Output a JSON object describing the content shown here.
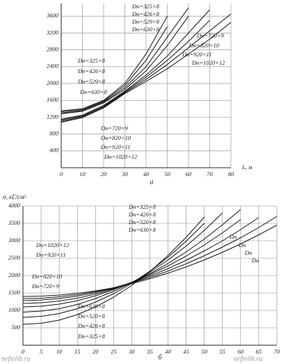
{
  "chart_data": [
    {
      "type": "line",
      "title": "а",
      "x_label": "L, м",
      "x": [
        0,
        10,
        20,
        30,
        40,
        50,
        60,
        70,
        80
      ],
      "xlim": [
        0,
        80
      ],
      "xticks": [
        0,
        10,
        20,
        30,
        40,
        50,
        60,
        70,
        80
      ],
      "ylim": [
        0,
        3900
      ],
      "yticks": [
        400,
        800,
        1200,
        1600,
        2000,
        2400,
        2800,
        3200,
        3600
      ],
      "grid": true,
      "series": [
        {
          "name": "Dн=325×8",
          "color": "#111111",
          "values": [
            1350,
            1400,
            1600,
            2000,
            2700,
            3600,
            null,
            null,
            null
          ]
        },
        {
          "name": "Dн=426×8",
          "color": "#111111",
          "values": [
            1330,
            1380,
            1580,
            1950,
            2550,
            3350,
            null,
            null,
            null
          ]
        },
        {
          "name": "Dн=529×8",
          "color": "#111111",
          "values": [
            1300,
            1360,
            1560,
            1900,
            2400,
            3100,
            3800,
            null,
            null
          ]
        },
        {
          "name": "Dн=630×8",
          "color": "#111111",
          "values": [
            1280,
            1340,
            1540,
            1860,
            2300,
            2900,
            3600,
            null,
            null
          ]
        },
        {
          "name": "Dн=720×9",
          "color": "#111111",
          "values": [
            1150,
            1250,
            1480,
            1820,
            2200,
            2650,
            3200,
            3750,
            null
          ]
        },
        {
          "name": "Dн=820×10",
          "color": "#111111",
          "values": [
            1130,
            1230,
            1460,
            1800,
            2150,
            2550,
            3000,
            3500,
            null
          ]
        },
        {
          "name": "Dн=920×11",
          "color": "#111111",
          "values": [
            1100,
            1210,
            1440,
            1780,
            2100,
            2450,
            2850,
            3250,
            3650
          ]
        },
        {
          "name": "Dн=1020×12",
          "color": "#111111",
          "values": [
            1080,
            1190,
            1420,
            1760,
            2050,
            2350,
            2700,
            3050,
            3450
          ]
        }
      ],
      "annotations": [
        "Dн=325×8",
        "Dн=426×8",
        "Dн=529×8",
        "Dн=630×8",
        "Dн=720×9",
        "Dн=820×10",
        "Dн=920×11",
        "Dн=1020×12"
      ]
    },
    {
      "type": "line",
      "title": "б",
      "y_label": "σ, кГ/см²",
      "x": [
        0,
        5,
        10,
        15,
        20,
        25,
        30,
        35,
        40,
        45,
        50,
        55,
        60,
        65,
        70
      ],
      "xlim": [
        0,
        70
      ],
      "xticks": [
        0,
        5,
        10,
        15,
        20,
        25,
        30,
        35,
        40,
        45,
        50,
        55,
        60,
        65,
        70
      ],
      "ylim": [
        0,
        4000
      ],
      "yticks": [
        500,
        1000,
        1500,
        2000,
        2500,
        3000,
        3500,
        4000
      ],
      "grid": true,
      "series": [
        {
          "name": "Dн=1020×12",
          "color": "#111111",
          "values": [
            1400,
            1410,
            1440,
            1490,
            1560,
            1650,
            1770,
            1910,
            2070,
            2250,
            2450,
            2670,
            2910,
            3170,
            3450
          ]
        },
        {
          "name": "Dн=920×11",
          "color": "#111111",
          "values": [
            1340,
            1350,
            1390,
            1450,
            1540,
            1650,
            1790,
            1950,
            2130,
            2340,
            2570,
            2820,
            3090,
            3380,
            3700
          ]
        },
        {
          "name": "Dн=820×10",
          "color": "#111111",
          "values": [
            1280,
            1300,
            1340,
            1410,
            1510,
            1640,
            1800,
            1990,
            2200,
            2440,
            2710,
            3000,
            3320,
            3670,
            null
          ]
        },
        {
          "name": "Dн=720×9",
          "color": "#111111",
          "values": [
            1200,
            1220,
            1270,
            1350,
            1470,
            1620,
            1810,
            2030,
            2280,
            2560,
            2880,
            3230,
            3610,
            null,
            null
          ]
        },
        {
          "name": "Dн=630×8",
          "color": "#111111",
          "values": [
            1100,
            1120,
            1180,
            1280,
            1420,
            1600,
            1810,
            2060,
            2350,
            2680,
            3050,
            3460,
            3900,
            null,
            null
          ]
        },
        {
          "name": "Dн=520×8",
          "color": "#111111",
          "values": [
            950,
            980,
            1050,
            1170,
            1340,
            1550,
            1800,
            2100,
            2450,
            2850,
            3300,
            3800,
            null,
            null,
            null
          ]
        },
        {
          "name": "Dн=426×8",
          "color": "#111111",
          "values": [
            800,
            830,
            910,
            1050,
            1240,
            1480,
            1780,
            2130,
            2530,
            2990,
            3500,
            null,
            null,
            null,
            null
          ]
        },
        {
          "name": "Dн=325×8",
          "color": "#111111",
          "values": [
            600,
            630,
            720,
            880,
            1100,
            1380,
            1720,
            2120,
            2580,
            3100,
            3680,
            null,
            null,
            null,
            null
          ]
        }
      ],
      "annotations": [
        "Dн=325×8",
        "Dн=426×8",
        "Dн=520×8",
        "Dн=630×8",
        "Dн",
        "Dн",
        "Dн",
        "Dн"
      ]
    }
  ],
  "watermark": "neftelib.ru"
}
